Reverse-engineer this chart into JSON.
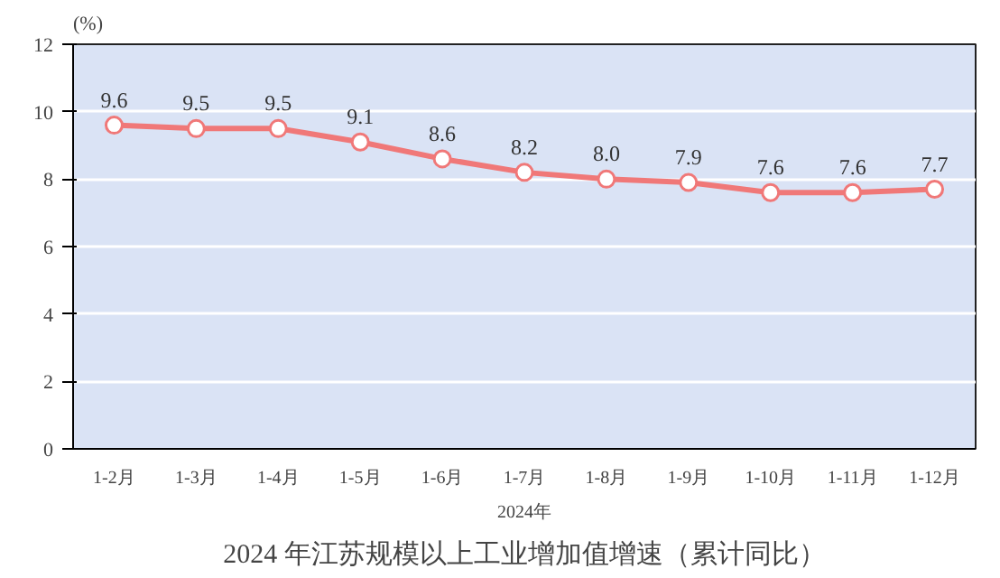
{
  "chart_data": {
    "type": "line",
    "title": "2024 年江苏规模以上工业增加值增速（累计同比）",
    "xlabel": "2024年",
    "ylabel": "(%)",
    "categories": [
      "1-2月",
      "1-3月",
      "1-4月",
      "1-5月",
      "1-6月",
      "1-7月",
      "1-8月",
      "1-9月",
      "1-10月",
      "1-11月",
      "1-12月"
    ],
    "series": [
      {
        "color": "#f07878",
        "values": [
          9.6,
          9.5,
          9.5,
          9.1,
          8.6,
          8.2,
          8.0,
          7.9,
          7.6,
          7.6,
          7.7
        ],
        "value_labels": [
          "9.6",
          "9.5",
          "9.5",
          "9.1",
          "8.6",
          "8.2",
          "8.0",
          "7.9",
          "7.6",
          "7.6",
          "7.7"
        ]
      }
    ],
    "ylim": [
      0,
      12
    ],
    "yticks": [
      0,
      2,
      4,
      6,
      8,
      10,
      12
    ],
    "grid": "y",
    "marker": "circle",
    "line_style": "solid"
  }
}
